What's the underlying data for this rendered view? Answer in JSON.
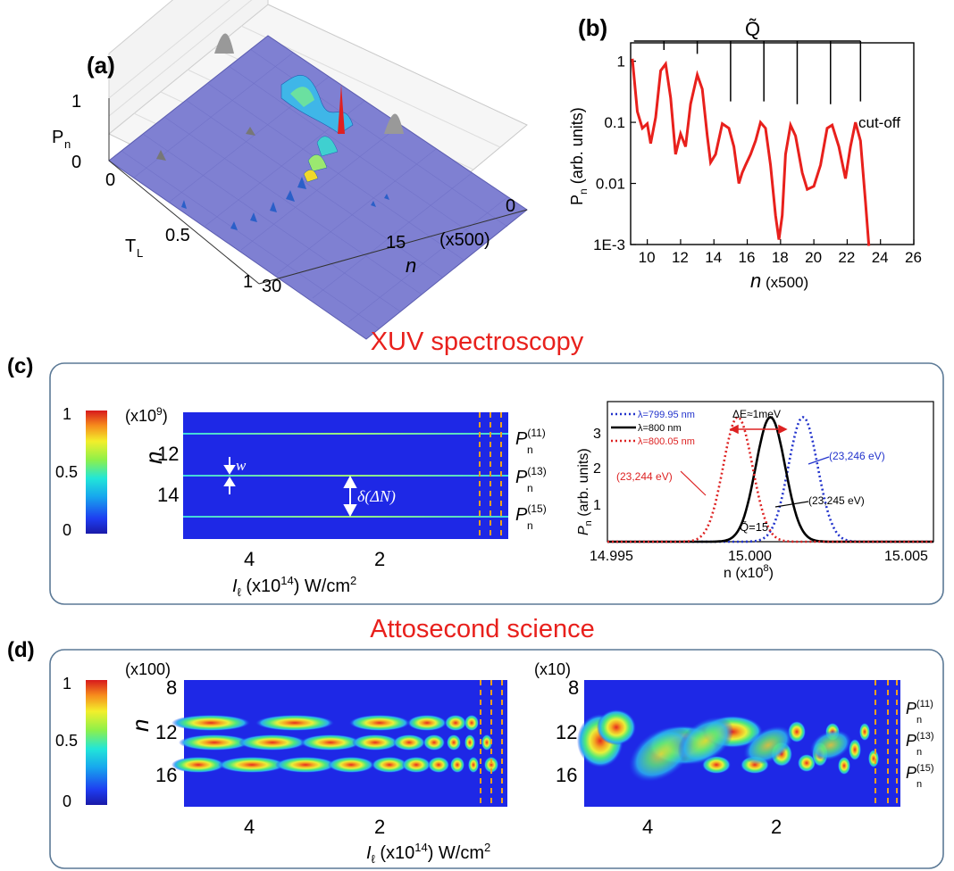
{
  "panel_a": {
    "label": "(a)",
    "z_label": "P",
    "z_sub": "n",
    "z_ticks": [
      "1",
      "0"
    ],
    "t_label": "T",
    "t_sub": "L",
    "t_ticks": [
      "0",
      "0.5",
      "1"
    ],
    "n_label": "n",
    "n_ticks": [
      "0",
      "15",
      "30"
    ],
    "n_scale": "(x500)"
  },
  "panel_b": {
    "label": "(b)",
    "q_label": "Q̃",
    "ylabel_main": "P",
    "ylabel_sub": "n",
    "ylabel_rest": " (arb. units)",
    "xlabel": "n",
    "xlabel_scale": " (x500)",
    "annotation": "cut-off",
    "y_ticks": [
      "1",
      "0.1",
      "0.01",
      "1E-3"
    ],
    "x_ticks": [
      "10",
      "12",
      "14",
      "16",
      "18",
      "20",
      "22",
      "24",
      "26"
    ]
  },
  "section_c": {
    "title": "XUV spectroscopy",
    "label": "(c)",
    "colorbar_ticks": [
      "1",
      "0.5",
      "0"
    ],
    "map": {
      "y_scale": "(x10",
      "y_scale_exp": "9",
      "y_scale_end": ")",
      "ylabel": "n",
      "y_ticks": [
        "12",
        "14"
      ],
      "x_ticks": [
        "4",
        "2"
      ],
      "w_label": "w",
      "delta_label": "δ(ΔN)",
      "right_labels": [
        "P",
        "P",
        "P"
      ],
      "right_sups": [
        "(11)",
        "(13)",
        "(15)"
      ],
      "right_sub": "n"
    },
    "xlabel": {
      "pre": "I",
      "sub": "ℓ",
      "mid": " (x10",
      "exp": "14",
      "post": ") W/cm",
      "sq": "2"
    },
    "spectrum": {
      "ylabel_main": "P",
      "ylabel_sub": "n",
      "ylabel_rest": " (arb. units)",
      "xlabel": "n (x10",
      "xlabel_exp": "8",
      "xlabel_end": ")",
      "x_ticks": [
        "14.995",
        "15.000",
        "15.005"
      ],
      "y_ticks": [
        "1",
        "2",
        "3"
      ],
      "legend": [
        "λ=799.95 nm",
        "λ=800 nm",
        "λ=800.05 nm"
      ],
      "legend_colors": [
        "#2233cc",
        "#000000",
        "#dd2222"
      ],
      "delta_e": "ΔE≈1meV",
      "ann_red": "(23,244 eV)",
      "ann_blue": "(23,246 eV)",
      "ann_black": "(23,245 eV)",
      "ann_q": "Q̃=15"
    }
  },
  "section_d": {
    "title": "Attosecond science",
    "label": "(d)",
    "colorbar_ticks": [
      "1",
      "0.5",
      "0"
    ],
    "left_map": {
      "y_scale": "(x100)",
      "ylabel": "n",
      "y_ticks": [
        "8",
        "12",
        "16"
      ],
      "x_ticks": [
        "4",
        "2"
      ]
    },
    "right_map": {
      "y_scale": "(x10)",
      "y_ticks": [
        "8",
        "12",
        "16"
      ],
      "x_ticks": [
        "4",
        "2"
      ],
      "right_labels": [
        "P",
        "P",
        "P"
      ],
      "right_sups": [
        "(11)",
        "(13)",
        "(15)"
      ],
      "right_sub": "n"
    },
    "xlabel": {
      "pre": "I",
      "sub": "ℓ",
      "mid": " (x10",
      "exp": "14",
      "post": ") W/cm",
      "sq": "2"
    }
  },
  "chart_data": [
    {
      "type": "line",
      "panel": "(b)",
      "xlabel": "n (x500)",
      "ylabel": "Pn (arb. units)",
      "yscale": "log",
      "xlim": [
        9,
        26
      ],
      "ylim": [
        0.001,
        2
      ],
      "series": [
        {
          "x": [
            9.1,
            9.4,
            9.7,
            10.0,
            10.2,
            10.5,
            10.8,
            11.1,
            11.4,
            11.7,
            12.0,
            12.3,
            12.6,
            13.0,
            13.3,
            13.6,
            13.8,
            14.1,
            14.5,
            14.9,
            15.2,
            15.5,
            15.7,
            15.9,
            16.2,
            16.5,
            16.8,
            17.1,
            17.4,
            17.7,
            17.9,
            18.1,
            18.3,
            18.6,
            18.9,
            19.3,
            19.6,
            20.0,
            20.4,
            20.8,
            21.1,
            21.5,
            21.9,
            22.2,
            22.5,
            22.8,
            23.1,
            23.3
          ],
          "y": [
            1.1,
            0.15,
            0.08,
            0.095,
            0.045,
            0.12,
            0.7,
            0.9,
            0.25,
            0.03,
            0.065,
            0.04,
            0.2,
            0.6,
            0.35,
            0.06,
            0.022,
            0.03,
            0.095,
            0.08,
            0.04,
            0.01,
            0.015,
            0.02,
            0.03,
            0.05,
            0.1,
            0.08,
            0.02,
            0.003,
            0.0012,
            0.003,
            0.03,
            0.09,
            0.06,
            0.015,
            0.008,
            0.009,
            0.02,
            0.08,
            0.09,
            0.04,
            0.012,
            0.04,
            0.1,
            0.05,
            0.005,
            0.0008
          ]
        }
      ],
      "markers_qtilde": [
        11,
        13,
        15,
        17,
        19,
        21,
        22.8
      ]
    },
    {
      "type": "line",
      "panel": "(c) right",
      "xlabel": "n (x10^8)",
      "ylabel": "Pn (arb. units)",
      "xlim": [
        14.995,
        15.005
      ],
      "ylim": [
        0,
        3.6
      ],
      "series": [
        {
          "name": "λ=799.95 nm",
          "center": 15.001,
          "peak": 3.2,
          "sigma": 0.00045
        },
        {
          "name": "λ=800 nm",
          "center": 15.0,
          "peak": 3.2,
          "sigma": 0.00045
        },
        {
          "name": "λ=800.05 nm",
          "center": 14.999,
          "peak": 3.2,
          "sigma": 0.00045
        }
      ]
    }
  ]
}
